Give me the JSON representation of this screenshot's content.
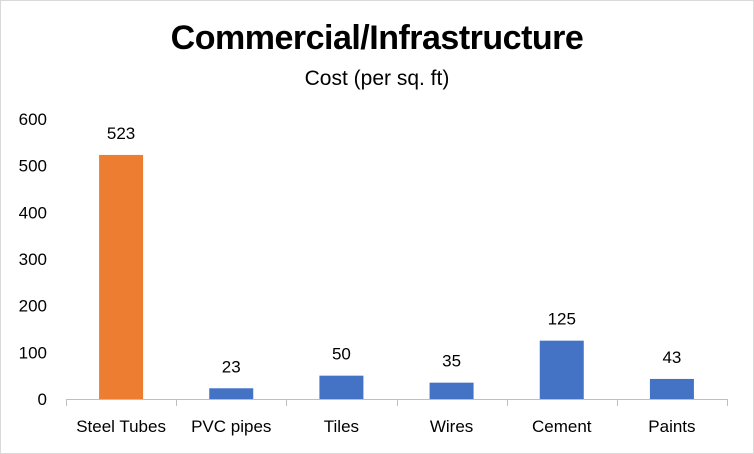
{
  "chart_data": {
    "type": "bar",
    "title": "Commercial/Infrastructure",
    "subtitle": "Cost (per sq. ft)",
    "xlabel": "",
    "ylabel": "",
    "categories": [
      "Steel Tubes",
      "PVC pipes",
      "Tiles",
      "Wires",
      "Cement",
      "Paints"
    ],
    "values": [
      523,
      23,
      50,
      35,
      125,
      43
    ],
    "data_labels": [
      "523",
      "23",
      "50",
      "35",
      "125",
      "43"
    ],
    "ylim": [
      0,
      600
    ],
    "yticks": [
      0,
      100,
      200,
      300,
      400,
      500,
      600
    ],
    "grid": false,
    "legend": "none",
    "colors": {
      "default_bar": "#4472c4",
      "highlight_bar": "#ed7d31",
      "axis": "#bfbfbf",
      "text": "#000000"
    },
    "highlight_index": 0
  }
}
